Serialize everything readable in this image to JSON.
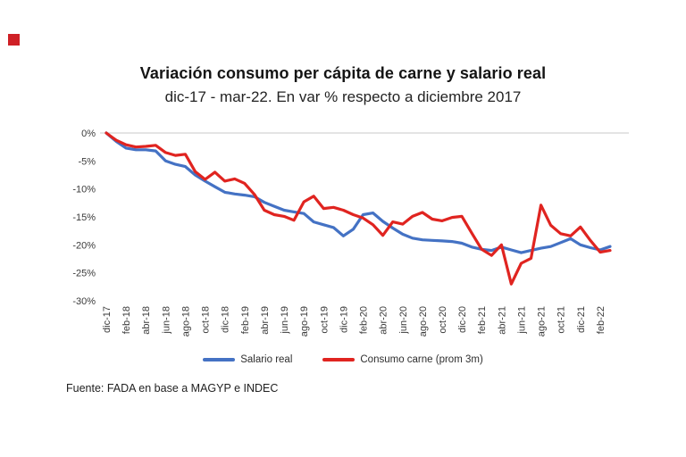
{
  "page": {
    "brand_color": "#cf2026",
    "background": "#ffffff"
  },
  "chart": {
    "source": "Fuente: FADA en base a MAGYP e INDEC"
  },
  "chart_data": {
    "type": "line",
    "title": "Variación consumo per cápita de carne y salario real",
    "subtitle": "dic-17 - mar-22. En var % respecto a diciembre 2017",
    "xlabel": "",
    "ylabel": "",
    "ylim": [
      -30,
      0
    ],
    "y_tick_values": [
      0,
      -5,
      -10,
      -15,
      -20,
      -25,
      -30
    ],
    "y_tick_suffix": "%",
    "x_tick_every": 2,
    "grid": false,
    "legend_position": "bottom",
    "x": [
      "dic-17",
      "ene-18",
      "feb-18",
      "mar-18",
      "abr-18",
      "may-18",
      "jun-18",
      "jul-18",
      "ago-18",
      "sep-18",
      "oct-18",
      "nov-18",
      "dic-18",
      "ene-19",
      "feb-19",
      "mar-19",
      "abr-19",
      "may-19",
      "jun-19",
      "jul-19",
      "ago-19",
      "sep-19",
      "oct-19",
      "nov-19",
      "dic-19",
      "ene-20",
      "feb-20",
      "mar-20",
      "abr-20",
      "may-20",
      "jun-20",
      "jul-20",
      "ago-20",
      "sep-20",
      "oct-20",
      "nov-20",
      "dic-20",
      "ene-21",
      "feb-21",
      "mar-21",
      "abr-21",
      "may-21",
      "jun-21",
      "jul-21",
      "ago-21",
      "sep-21",
      "oct-21",
      "nov-21",
      "dic-21",
      "ene-22",
      "feb-22",
      "mar-22"
    ],
    "series": [
      {
        "name": "Salario real",
        "color": "#4472c4",
        "values": [
          0,
          -1.5,
          -2.7,
          -3.0,
          -3.0,
          -3.2,
          -5.0,
          -5.6,
          -6.0,
          -7.5,
          -8.6,
          -9.6,
          -10.6,
          -10.9,
          -11.1,
          -11.4,
          -12.4,
          -13.1,
          -13.8,
          -14.1,
          -14.4,
          -15.9,
          -16.4,
          -16.9,
          -18.4,
          -17.2,
          -14.6,
          -14.3,
          -15.8,
          -17.0,
          -18.1,
          -18.8,
          -19.1,
          -19.2,
          -19.3,
          -19.4,
          -19.7,
          -20.4,
          -20.8,
          -21.0,
          -20.4,
          -20.9,
          -21.4,
          -21.0,
          -20.6,
          -20.3,
          -19.6,
          -18.9,
          -20.0,
          -20.5,
          -20.9,
          -20.3
        ]
      },
      {
        "name": "Consumo carne (prom 3m)",
        "color": "#e02420",
        "values": [
          0,
          -1.3,
          -2.1,
          -2.5,
          -2.4,
          -2.2,
          -3.5,
          -4.0,
          -3.8,
          -6.9,
          -8.3,
          -7.0,
          -8.6,
          -8.2,
          -9.0,
          -11.0,
          -13.8,
          -14.6,
          -14.9,
          -15.6,
          -12.3,
          -11.3,
          -13.5,
          -13.3,
          -13.8,
          -14.6,
          -15.2,
          -16.4,
          -18.3,
          -15.9,
          -16.3,
          -14.9,
          -14.2,
          -15.4,
          -15.7,
          -15.1,
          -14.9,
          -17.9,
          -20.8,
          -21.9,
          -20.0,
          -27.0,
          -23.3,
          -22.4,
          -12.9,
          -16.5,
          -18.0,
          -18.4,
          -16.8,
          -19.2,
          -21.3,
          -21.0
        ]
      }
    ]
  }
}
